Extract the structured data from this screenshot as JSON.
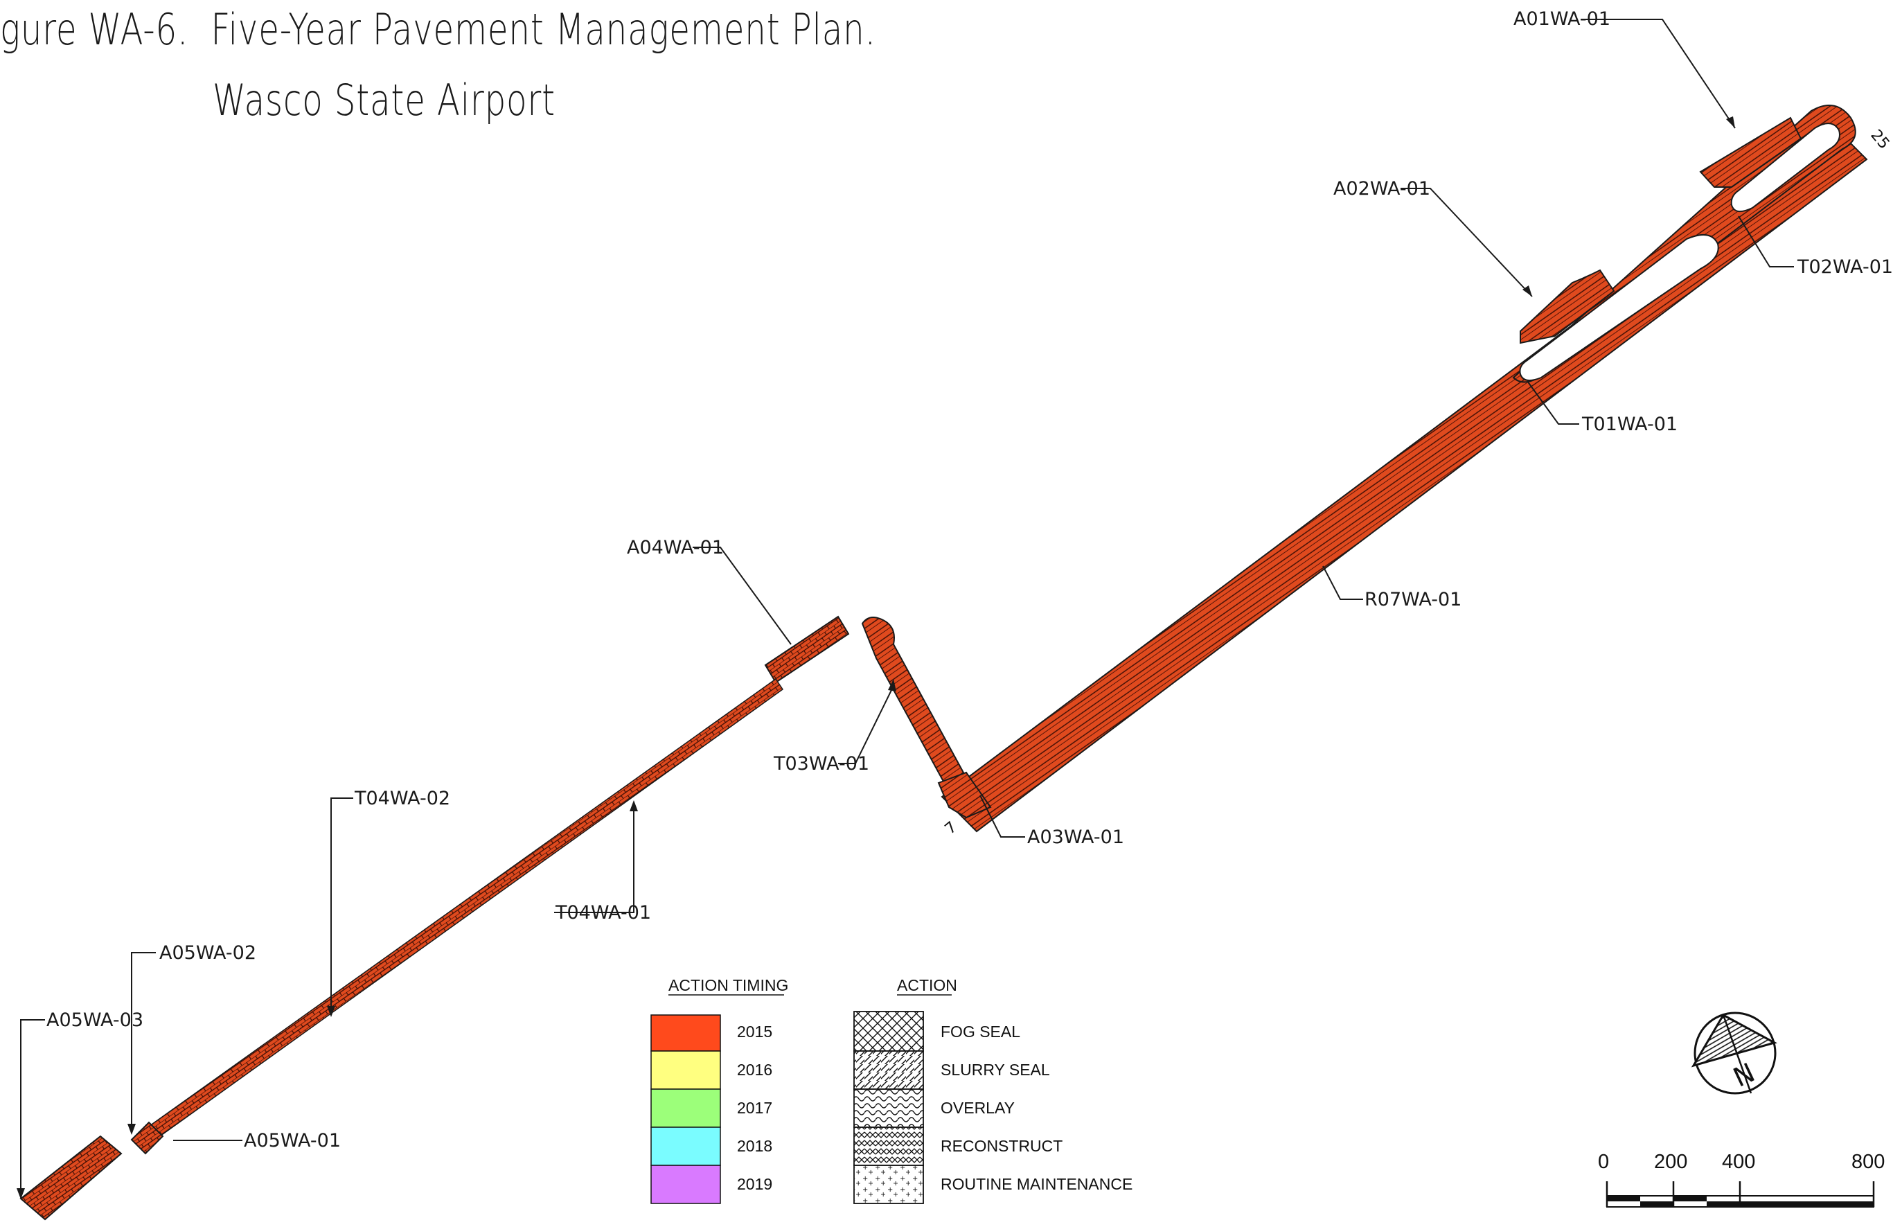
{
  "title": {
    "line1": "gure WA-6.  Five-Year Pavement Management Plan.",
    "line2": "Wasco State Airport"
  },
  "colors": {
    "pavement_fill": "#e04a1e",
    "pavement_stroke": "#1a1a1a",
    "hatch": "#3a0d05",
    "leader": "#1a1a1a"
  },
  "runway_end_label": "25",
  "runway_end_mark": "7",
  "section_labels": [
    {
      "id": "A01WA-01"
    },
    {
      "id": "A02WA-01"
    },
    {
      "id": "T02WA-01"
    },
    {
      "id": "T01WA-01"
    },
    {
      "id": "R07WA-01"
    },
    {
      "id": "A04WA-01"
    },
    {
      "id": "T03WA-01"
    },
    {
      "id": "A03WA-01"
    },
    {
      "id": "T04WA-02"
    },
    {
      "id": "T04WA-01"
    },
    {
      "id": "A05WA-02"
    },
    {
      "id": "A05WA-03"
    },
    {
      "id": "A05WA-01"
    }
  ],
  "legend_timing": {
    "heading": "ACTION TIMING",
    "items": [
      {
        "year": "2015",
        "color": "#ff4a1c"
      },
      {
        "year": "2016",
        "color": "#ffff80"
      },
      {
        "year": "2017",
        "color": "#9cff7a"
      },
      {
        "year": "2018",
        "color": "#7afcff"
      },
      {
        "year": "2019",
        "color": "#d97aff"
      }
    ]
  },
  "legend_action": {
    "heading": "ACTION",
    "items": [
      {
        "label": "FOG SEAL",
        "pattern": "crosshatch"
      },
      {
        "label": "SLURRY SEAL",
        "pattern": "diagonal"
      },
      {
        "label": "OVERLAY",
        "pattern": "wave"
      },
      {
        "label": "RECONSTRUCT",
        "pattern": "zigzag"
      },
      {
        "label": "ROUTINE MAINTENANCE",
        "pattern": "dots"
      }
    ]
  },
  "north_arrow": {
    "letter": "N",
    "icon": "north-arrow-icon"
  },
  "scale_bar": {
    "ticks": [
      "0",
      "200",
      "400",
      "800"
    ],
    "icon": "scale-bar-icon"
  }
}
